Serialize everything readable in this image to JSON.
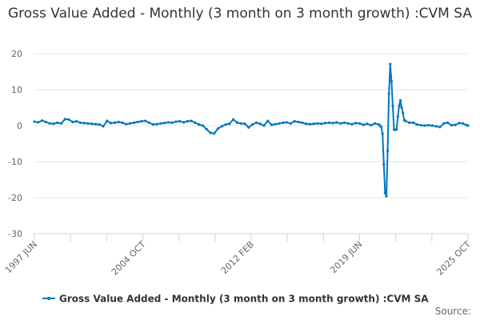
{
  "chart_data": {
    "type": "line",
    "title": "Gross Value Added - Monthly (3 month on 3 month growth) :CVM SA",
    "xlabel": "",
    "ylabel": "",
    "ylim": [
      -30,
      20
    ],
    "y_ticks": [
      20,
      10,
      0,
      -10,
      -20,
      -30
    ],
    "x_range": [
      "1997 JUN",
      "2025 OCT"
    ],
    "x_tick_labels": [
      "1997 JUN",
      "2004 OCT",
      "2012 FEB",
      "2019 JUN",
      "2025 OCT"
    ],
    "grid": "horizontal",
    "legend": "bottom",
    "series": [
      {
        "name": "Gross Value Added - Monthly (3 month on 3 month growth) :CVM SA",
        "color": "#0077c0",
        "x": [
          "1997 JUN",
          "1997 SEP",
          "1997 DEC",
          "1998 MAR",
          "1998 JUN",
          "1998 SEP",
          "1998 DEC",
          "1999 MAR",
          "1999 JUN",
          "1999 SEP",
          "1999 DEC",
          "2000 MAR",
          "2000 JUN",
          "2000 SEP",
          "2000 DEC",
          "2001 MAR",
          "2001 JUN",
          "2001 SEP",
          "2001 DEC",
          "2002 MAR",
          "2002 JUN",
          "2002 SEP",
          "2002 DEC",
          "2003 MAR",
          "2003 JUN",
          "2003 SEP",
          "2003 DEC",
          "2004 MAR",
          "2004 JUN",
          "2004 SEP",
          "2004 DEC",
          "2005 MAR",
          "2005 JUN",
          "2005 SEP",
          "2005 DEC",
          "2006 MAR",
          "2006 JUN",
          "2006 SEP",
          "2006 DEC",
          "2007 MAR",
          "2007 JUN",
          "2007 SEP",
          "2007 DEC",
          "2008 MAR",
          "2008 JUN",
          "2008 SEP",
          "2008 DEC",
          "2009 MAR",
          "2009 JUN",
          "2009 SEP",
          "2009 DEC",
          "2010 MAR",
          "2010 JUN",
          "2010 SEP",
          "2010 DEC",
          "2011 MAR",
          "2011 JUN",
          "2011 SEP",
          "2011 DEC",
          "2012 MAR",
          "2012 JUN",
          "2012 SEP",
          "2012 DEC",
          "2013 MAR",
          "2013 JUN",
          "2013 SEP",
          "2013 DEC",
          "2014 MAR",
          "2014 JUN",
          "2014 SEP",
          "2014 DEC",
          "2015 MAR",
          "2015 JUN",
          "2015 SEP",
          "2015 DEC",
          "2016 MAR",
          "2016 JUN",
          "2016 SEP",
          "2016 DEC",
          "2017 MAR",
          "2017 JUN",
          "2017 SEP",
          "2017 DEC",
          "2018 MAR",
          "2018 JUN",
          "2018 SEP",
          "2018 DEC",
          "2019 MAR",
          "2019 JUN",
          "2019 SEP",
          "2019 DEC",
          "2020 JAN",
          "2020 FEB",
          "2020 MAR",
          "2020 APR",
          "2020 MAY",
          "2020 JUN",
          "2020 JUL",
          "2020 AUG",
          "2020 SEP",
          "2020 OCT",
          "2020 NOV",
          "2020 DEC",
          "2021 JAN",
          "2021 FEB",
          "2021 MAR",
          "2021 APR",
          "2021 MAY",
          "2021 JUN",
          "2021 JUL",
          "2021 AUG",
          "2021 SEP",
          "2021 DEC",
          "2022 MAR",
          "2022 JUN",
          "2022 SEP",
          "2022 DEC",
          "2023 MAR",
          "2023 JUN",
          "2023 SEP",
          "2023 DEC",
          "2024 MAR",
          "2024 JUN",
          "2024 SEP",
          "2024 DEC",
          "2025 MAR",
          "2025 JUN",
          "2025 SEP",
          "2025 OCT"
        ],
        "values": [
          1.1,
          0.9,
          1.4,
          1.0,
          0.6,
          0.5,
          0.8,
          0.6,
          1.8,
          1.7,
          1.0,
          1.2,
          0.8,
          0.7,
          0.6,
          0.5,
          0.4,
          0.3,
          -0.2,
          1.3,
          0.7,
          0.8,
          1.0,
          0.8,
          0.4,
          0.6,
          0.8,
          1.0,
          1.2,
          1.3,
          0.8,
          0.3,
          0.4,
          0.6,
          0.7,
          0.9,
          0.8,
          1.1,
          1.2,
          0.9,
          1.2,
          1.3,
          0.8,
          0.3,
          0.0,
          -1.0,
          -2.0,
          -2.2,
          -0.8,
          -0.2,
          0.3,
          0.5,
          1.7,
          0.8,
          0.6,
          0.5,
          -0.5,
          0.3,
          0.8,
          0.5,
          0.0,
          1.3,
          0.2,
          0.4,
          0.6,
          0.8,
          0.9,
          0.6,
          1.2,
          1.0,
          0.8,
          0.5,
          0.4,
          0.5,
          0.6,
          0.5,
          0.7,
          0.8,
          0.7,
          0.9,
          0.6,
          0.8,
          0.6,
          0.4,
          0.7,
          0.6,
          0.2,
          0.5,
          0.1,
          0.6,
          0.3,
          0.0,
          -0.4,
          -2.3,
          -10.8,
          -18.7,
          -19.6,
          -7.0,
          8.9,
          17.1,
          12.3,
          5.5,
          -1.1,
          -1.2,
          -1.0,
          2.5,
          5.5,
          7.0,
          5.0,
          3.5,
          1.5,
          1.3,
          0.8,
          0.8,
          0.3,
          0.1,
          0.0,
          0.1,
          0.0,
          -0.2,
          -0.4,
          0.6,
          0.8,
          0.1,
          0.2,
          0.7,
          0.6,
          0.1,
          0.0
        ]
      }
    ]
  },
  "source_label": "Source:"
}
